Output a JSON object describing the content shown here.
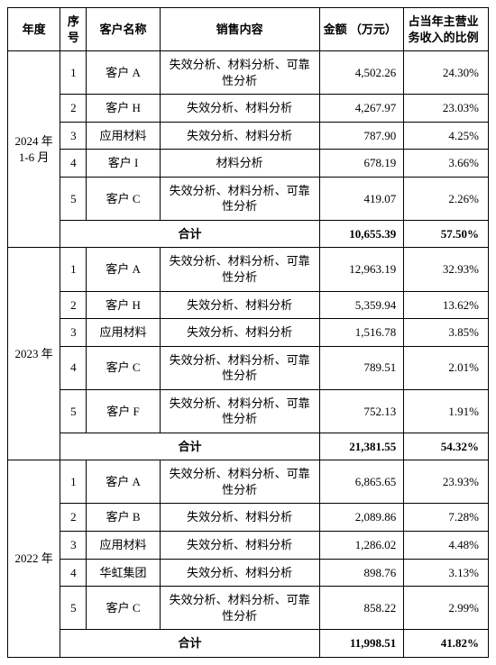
{
  "table": {
    "headers": {
      "year": "年度",
      "seq": "序号",
      "customer": "客户名称",
      "content": "销售内容",
      "amount": "金额\n（万元）",
      "ratio": "占当年主营业务收入的比例"
    },
    "groups": [
      {
        "year": "2024 年\n1-6 月",
        "rows": [
          {
            "seq": "1",
            "customer": "客户 A",
            "content": "失效分析、材料分析、可靠性分析",
            "amount": "4,502.26",
            "ratio": "24.30%"
          },
          {
            "seq": "2",
            "customer": "客户 H",
            "content": "失效分析、材料分析",
            "amount": "4,267.97",
            "ratio": "23.03%"
          },
          {
            "seq": "3",
            "customer": "应用材料",
            "content": "失效分析、材料分析",
            "amount": "787.90",
            "ratio": "4.25%"
          },
          {
            "seq": "4",
            "customer": "客户 I",
            "content": "材料分析",
            "amount": "678.19",
            "ratio": "3.66%"
          },
          {
            "seq": "5",
            "customer": "客户 C",
            "content": "失效分析、材料分析、可靠性分析",
            "amount": "419.07",
            "ratio": "2.26%"
          }
        ],
        "subtotal": {
          "label": "合计",
          "amount": "10,655.39",
          "ratio": "57.50%"
        }
      },
      {
        "year": "2023 年",
        "rows": [
          {
            "seq": "1",
            "customer": "客户 A",
            "content": "失效分析、材料分析、可靠性分析",
            "amount": "12,963.19",
            "ratio": "32.93%"
          },
          {
            "seq": "2",
            "customer": "客户 H",
            "content": "失效分析、材料分析",
            "amount": "5,359.94",
            "ratio": "13.62%"
          },
          {
            "seq": "3",
            "customer": "应用材料",
            "content": "失效分析、材料分析",
            "amount": "1,516.78",
            "ratio": "3.85%"
          },
          {
            "seq": "4",
            "customer": "客户 C",
            "content": "失效分析、材料分析、可靠性分析",
            "amount": "789.51",
            "ratio": "2.01%"
          },
          {
            "seq": "5",
            "customer": "客户 F",
            "content": "失效分析、材料分析、可靠性分析",
            "amount": "752.13",
            "ratio": "1.91%"
          }
        ],
        "subtotal": {
          "label": "合计",
          "amount": "21,381.55",
          "ratio": "54.32%"
        }
      },
      {
        "year": "2022 年",
        "rows": [
          {
            "seq": "1",
            "customer": "客户 A",
            "content": "失效分析、材料分析、可靠性分析",
            "amount": "6,865.65",
            "ratio": "23.93%"
          },
          {
            "seq": "2",
            "customer": "客户 B",
            "content": "失效分析、材料分析",
            "amount": "2,089.86",
            "ratio": "7.28%"
          },
          {
            "seq": "3",
            "customer": "应用材料",
            "content": "失效分析、材料分析",
            "amount": "1,286.02",
            "ratio": "4.48%"
          },
          {
            "seq": "4",
            "customer": "华虹集团",
            "content": "失效分析、材料分析",
            "amount": "898.76",
            "ratio": "3.13%"
          },
          {
            "seq": "5",
            "customer": "客户 C",
            "content": "失效分析、材料分析、可靠性分析",
            "amount": "858.22",
            "ratio": "2.99%"
          }
        ],
        "subtotal": {
          "label": "合计",
          "amount": "11,998.51",
          "ratio": "41.82%"
        }
      }
    ]
  },
  "style": {
    "border_color": "#000000",
    "background": "#ffffff",
    "font_size_pt": 10,
    "header_bold": true,
    "subtotal_bold": true
  }
}
